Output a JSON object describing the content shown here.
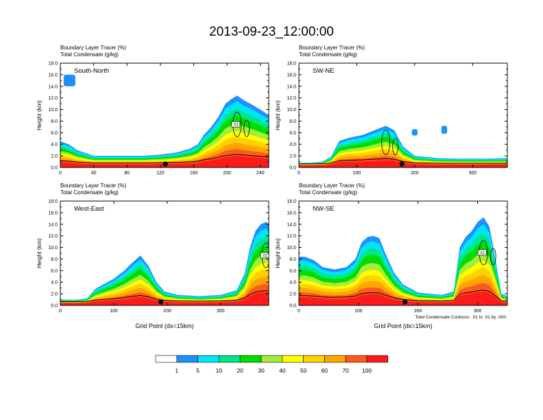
{
  "figure": {
    "title": "2013-09-23_12:00:00",
    "contour_note": "Total Condensate Contours: .01 to .01 by .000"
  },
  "colorbar": {
    "levels": [
      "1",
      "5",
      "10",
      "20",
      "30",
      "40",
      "50",
      "60",
      "70",
      "100"
    ],
    "colors": [
      "#ffffff",
      "#1e90ff",
      "#00e5ff",
      "#00e68a",
      "#00dd00",
      "#a6ec3a",
      "#ffff00",
      "#ffd000",
      "#ffa500",
      "#ff5a1e",
      "#ff1a1a"
    ]
  },
  "chart_data": [
    {
      "type": "contour",
      "panel": "South-North",
      "var1": "Boundary Layer Tracer   (%)",
      "var2": "Total Condensate   (g/kg)",
      "ylabel": "Height (km)",
      "xlabel": "",
      "ylim": [
        0,
        18
      ],
      "xlim": [
        0,
        250
      ],
      "yticks": [
        "0.0",
        "2.0",
        "4.0",
        "6.0",
        "8.0",
        "10.0",
        "12.0",
        "14.0",
        "16.0",
        "18.0"
      ],
      "xticks": [
        "0",
        "40",
        "80",
        "120",
        "160",
        "200",
        "240"
      ],
      "marker_x": 126,
      "contour_label": ".01",
      "tracer_profile": {
        "x": [
          0,
          10,
          20,
          30,
          40,
          60,
          80,
          100,
          120,
          140,
          155,
          165,
          172,
          180,
          190,
          198,
          205,
          212,
          220,
          228,
          235,
          242,
          250
        ],
        "top": [
          4.5,
          4.0,
          3.0,
          2.5,
          2.0,
          2.0,
          2.0,
          2.0,
          2.2,
          2.6,
          3.2,
          4.0,
          5.6,
          6.8,
          8.8,
          11.0,
          11.8,
          12.4,
          11.6,
          11.0,
          10.4,
          9.8,
          9.0
        ]
      },
      "patches": [
        {
          "x": [
            4,
            18
          ],
          "y": [
            14.0,
            16.0
          ],
          "level": 1
        }
      ]
    },
    {
      "type": "contour",
      "panel": "SW-NE",
      "var1": "Boundary Layer Tracer   (%)",
      "var2": "Total Condensate   (g/kg)",
      "ylabel": "Height (km)",
      "xlabel": "",
      "ylim": [
        0,
        18
      ],
      "xlim": [
        0,
        360
      ],
      "yticks": [
        "0.0",
        "2.0",
        "4.0",
        "6.0",
        "8.0",
        "10.0",
        "12.0",
        "14.0",
        "16.0",
        "18.0"
      ],
      "xticks": [
        "0",
        "100",
        "200",
        "300"
      ],
      "marker_x": 178,
      "contour_label": "",
      "tracer_profile": {
        "x": [
          0,
          20,
          40,
          55,
          70,
          90,
          110,
          130,
          150,
          165,
          180,
          200,
          240,
          280,
          320,
          360
        ],
        "top": [
          0.8,
          0.8,
          1.0,
          1.8,
          4.6,
          5.2,
          5.6,
          6.4,
          7.2,
          6.4,
          3.6,
          2.0,
          1.6,
          1.5,
          1.5,
          1.6
        ]
      },
      "patches": [
        {
          "x": [
            195,
            205
          ],
          "y": [
            5.5,
            6.6
          ],
          "level": 1
        },
        {
          "x": [
            246,
            256
          ],
          "y": [
            5.8,
            7.2
          ],
          "level": 1
        }
      ]
    },
    {
      "type": "contour",
      "panel": "West-East",
      "var1": "Boundary Layer Tracer   (%)",
      "var2": "Total Condensate   (g/kg)",
      "ylabel": "Height (km)",
      "xlabel": "Grid Point (dx=15km)",
      "ylim": [
        0,
        18
      ],
      "xlim": [
        0,
        390
      ],
      "yticks": [
        "0.0",
        "2.0",
        "4.0",
        "6.0",
        "8.0",
        "10.0",
        "12.0",
        "14.0",
        "16.0",
        "18.0"
      ],
      "xticks": [
        "0",
        "100",
        "200",
        "300"
      ],
      "marker_x": 188,
      "contour_label": ".01",
      "tracer_profile": {
        "x": [
          0,
          30,
          50,
          65,
          80,
          100,
          120,
          135,
          150,
          165,
          180,
          195,
          220,
          260,
          300,
          330,
          345,
          355,
          365,
          375,
          385,
          390
        ],
        "top": [
          1.0,
          1.0,
          1.2,
          2.8,
          3.6,
          4.6,
          6.0,
          7.4,
          8.6,
          6.8,
          4.0,
          2.4,
          1.8,
          1.6,
          1.8,
          2.6,
          5.5,
          10.0,
          12.8,
          14.0,
          14.4,
          14.0
        ]
      },
      "patches": []
    },
    {
      "type": "contour",
      "panel": "NW-SE",
      "var1": "Boundary Layer Tracer   (%)",
      "var2": "Total Condensate   (g/kg)",
      "ylabel": "Height (km)",
      "xlabel": "Grid Point (dx=15km)",
      "ylim": [
        0,
        18
      ],
      "xlim": [
        0,
        350
      ],
      "yticks": [
        "0.0",
        "2.0",
        "4.0",
        "6.0",
        "8.0",
        "10.0",
        "12.0",
        "14.0",
        "16.0",
        "18.0"
      ],
      "xticks": [
        "0",
        "100",
        "200",
        "300"
      ],
      "marker_x": 178,
      "contour_label": ".01",
      "tracer_profile": {
        "x": [
          0,
          10,
          25,
          40,
          60,
          80,
          95,
          105,
          115,
          125,
          135,
          145,
          160,
          175,
          200,
          240,
          260,
          270,
          280,
          290,
          300,
          310,
          320,
          330,
          340,
          350
        ],
        "top": [
          8.4,
          8.4,
          7.8,
          6.6,
          6.2,
          6.6,
          8.0,
          10.8,
          11.8,
          12.0,
          11.6,
          9.0,
          5.6,
          3.6,
          2.2,
          1.8,
          2.4,
          10.0,
          11.8,
          12.8,
          14.4,
          15.2,
          13.6,
          8.0,
          2.0,
          1.6
        ]
      },
      "patches": []
    }
  ]
}
